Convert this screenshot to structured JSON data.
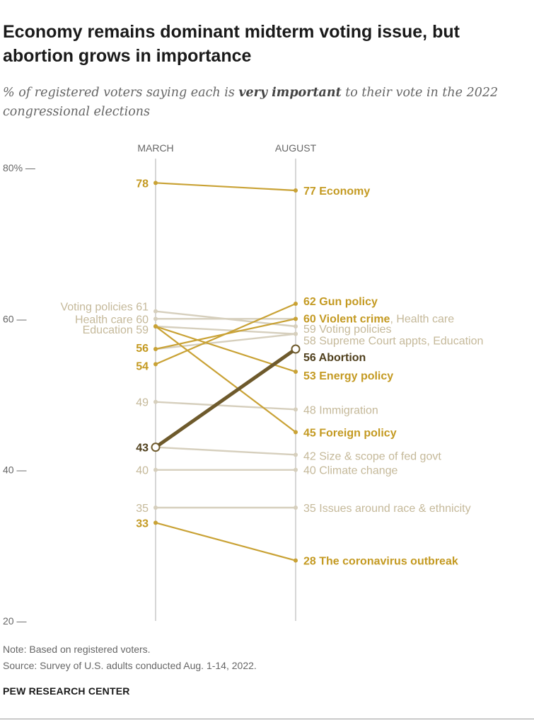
{
  "title": "Economy remains dominant midterm voting issue, but abortion grows in importance",
  "subtitle_pre": "% of registered voters saying each is ",
  "subtitle_em": "very important",
  "subtitle_post": " to their vote in the 2022 congressional elections",
  "note": "Note: Based on registered voters.",
  "source": "Source: Survey of U.S. adults conducted Aug. 1-14, 2022.",
  "credit": "PEW RESEARCH CENTER",
  "colors": {
    "gold": "#c9a235",
    "gold_text": "#c49a22",
    "muted": "#d6cfbd",
    "muted_text": "#c5b99a",
    "abortion": "#6e5a2c",
    "abortion_text": "#4f3f1c",
    "axis": "#bbbbbb",
    "tick_text": "#666666"
  },
  "chart_data": {
    "type": "slope",
    "title": "Economy remains dominant midterm voting issue, but abortion grows in importance",
    "x_labels": [
      "MARCH",
      "AUGUST"
    ],
    "ylim": [
      20,
      80
    ],
    "yticks": [
      {
        "value": 80,
        "label": "80% —"
      },
      {
        "value": 60,
        "label": "60 —"
      },
      {
        "value": 40,
        "label": "40 —"
      },
      {
        "value": 20,
        "label": "20 —"
      }
    ],
    "series": [
      {
        "name": "Voting policies",
        "march": 61,
        "august": 59,
        "style": "muted"
      },
      {
        "name": "Health care",
        "march": 60,
        "august": 60,
        "style": "muted"
      },
      {
        "name": "Education",
        "march": 59,
        "august": 58,
        "style": "muted"
      },
      {
        "name": "Supreme Court appts",
        "march": 56,
        "august": 58,
        "style": "muted"
      },
      {
        "name": "Immigration",
        "march": 49,
        "august": 48,
        "style": "muted"
      },
      {
        "name": "Size & scope of fed govt",
        "march": 43,
        "august": 42,
        "style": "muted"
      },
      {
        "name": "Climate change",
        "march": 40,
        "august": 40,
        "style": "muted"
      },
      {
        "name": "Issues around race & ethnicity",
        "march": 35,
        "august": 35,
        "style": "muted"
      },
      {
        "name": "Economy",
        "march": 78,
        "august": 77,
        "style": "gold"
      },
      {
        "name": "Gun policy",
        "march": 54,
        "august": 62,
        "style": "gold"
      },
      {
        "name": "Violent crime",
        "march": 56,
        "august": 60,
        "style": "gold"
      },
      {
        "name": "Energy policy",
        "march": 59,
        "august": 53,
        "style": "gold"
      },
      {
        "name": "Foreign policy",
        "march": 59,
        "august": 45,
        "style": "gold"
      },
      {
        "name": "The coronavirus outbreak",
        "march": 33,
        "august": 28,
        "style": "gold"
      },
      {
        "name": "Abortion",
        "march": 43,
        "august": 56,
        "style": "highlight"
      }
    ],
    "left_labels": [
      {
        "text": "78",
        "value": 78,
        "style": "gold"
      },
      {
        "text": "Voting policies 61",
        "value": 61,
        "style": "muted"
      },
      {
        "text": "Health care 60",
        "value": 60,
        "style": "muted"
      },
      {
        "text": "Education 59",
        "value": 59,
        "style": "muted"
      },
      {
        "text": "56",
        "value": 56,
        "style": "gold"
      },
      {
        "text": "54",
        "value": 54,
        "style": "gold"
      },
      {
        "text": "49",
        "value": 49,
        "style": "muted"
      },
      {
        "text": "43",
        "value": 43,
        "style": "highlight"
      },
      {
        "text": "40",
        "value": 40,
        "style": "muted"
      },
      {
        "text": "35",
        "value": 35,
        "style": "muted"
      },
      {
        "text": "33",
        "value": 33,
        "style": "gold"
      }
    ],
    "right_labels": [
      {
        "num": "77",
        "name": "Economy",
        "extra": "",
        "value": 77,
        "style": "gold"
      },
      {
        "num": "62",
        "name": "Gun policy",
        "extra": "",
        "value": 62,
        "style": "gold"
      },
      {
        "num": "60",
        "name": "Violent crime",
        "extra": ", Health care",
        "value": 60,
        "style": "gold"
      },
      {
        "num": "59",
        "name": "Voting policies",
        "extra": "",
        "value": 59,
        "style": "muted"
      },
      {
        "num": "58",
        "name": "Supreme Court appts, Education",
        "extra": "",
        "value": 58,
        "style": "muted"
      },
      {
        "num": "56",
        "name": "Abortion",
        "extra": "",
        "value": 56,
        "style": "highlight"
      },
      {
        "num": "53",
        "name": "Energy policy",
        "extra": "",
        "value": 53,
        "style": "gold"
      },
      {
        "num": "48",
        "name": "Immigration",
        "extra": "",
        "value": 48,
        "style": "muted"
      },
      {
        "num": "45",
        "name": "Foreign policy",
        "extra": "",
        "value": 45,
        "style": "gold"
      },
      {
        "num": "42",
        "name": "Size & scope of fed govt",
        "extra": "",
        "value": 42,
        "style": "muted"
      },
      {
        "num": "40",
        "name": "Climate change",
        "extra": "",
        "value": 40,
        "style": "muted"
      },
      {
        "num": "35",
        "name": "Issues around race & ethnicity",
        "extra": "",
        "value": 35,
        "style": "muted"
      },
      {
        "num": "28",
        "name": "The coronavirus outbreak",
        "extra": "",
        "value": 28,
        "style": "gold"
      }
    ]
  }
}
